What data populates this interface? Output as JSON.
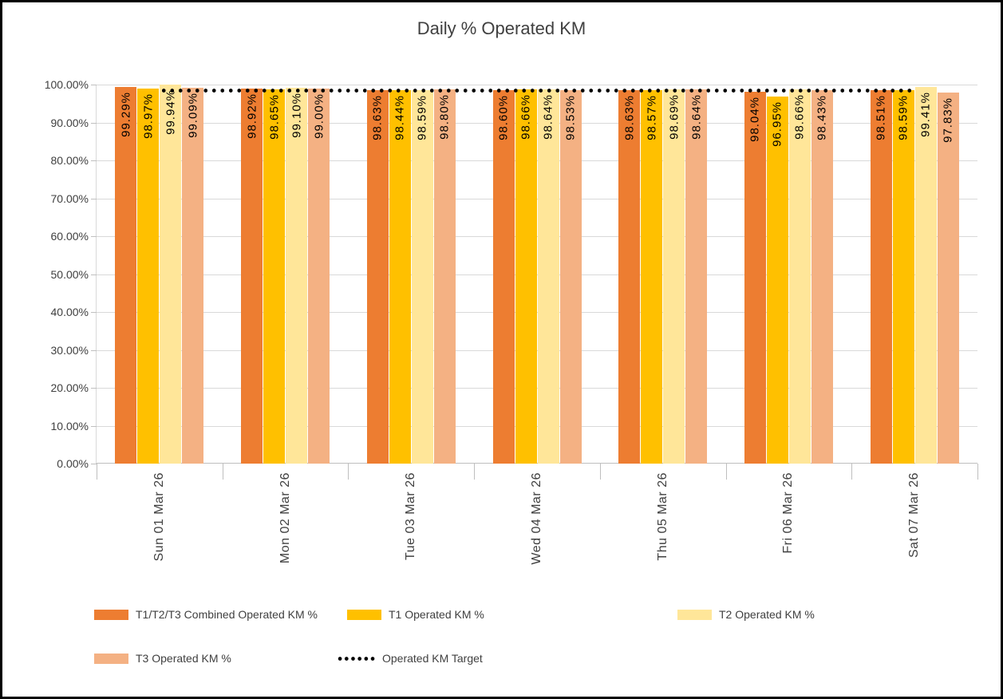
{
  "chart_data": {
    "type": "bar",
    "title": "Daily % Operated KM",
    "categories": [
      "Sun 01 Mar 26",
      "Mon 02 Mar 26",
      "Tue 03 Mar 26",
      "Wed 04 Mar 26",
      "Thu 05 Mar 26",
      "Fri 06 Mar 26",
      "Sat 07 Mar 26"
    ],
    "series": [
      {
        "name": "T1/T2/T3 Combined Operated KM %",
        "color": "#ED7D31",
        "values": [
          99.29,
          98.92,
          98.63,
          98.6,
          98.63,
          98.04,
          98.51
        ]
      },
      {
        "name": "T1 Operated KM %",
        "color": "#FFC000",
        "values": [
          98.97,
          98.65,
          98.44,
          98.66,
          98.57,
          96.95,
          98.59
        ]
      },
      {
        "name": "T2 Operated KM %",
        "color": "#FFE699",
        "values": [
          99.94,
          99.1,
          98.59,
          98.64,
          98.69,
          98.66,
          99.41
        ]
      },
      {
        "name": "T3 Operated KM %",
        "color": "#F4B183",
        "values": [
          99.09,
          99.0,
          98.8,
          98.53,
          98.64,
          98.43,
          97.83
        ]
      }
    ],
    "target_line": {
      "name": "Operated KM Target",
      "value": 98.5,
      "color": "#000000",
      "style": "dotted"
    },
    "xlabel": "",
    "ylabel": "",
    "ylim": [
      0,
      100
    ],
    "y_tick_step": 10,
    "y_tick_labels": [
      "0.00%",
      "10.00%",
      "20.00%",
      "30.00%",
      "40.00%",
      "50.00%",
      "60.00%",
      "70.00%",
      "80.00%",
      "90.00%",
      "100.00%"
    ],
    "data_label_format": "0.00%",
    "grid": true,
    "legend_position": "bottom"
  },
  "colors": {
    "grid": "#D9D9D9",
    "axis": "#BFBFBF",
    "text": "#404040",
    "data_label": "#000000",
    "border": "#000000"
  }
}
